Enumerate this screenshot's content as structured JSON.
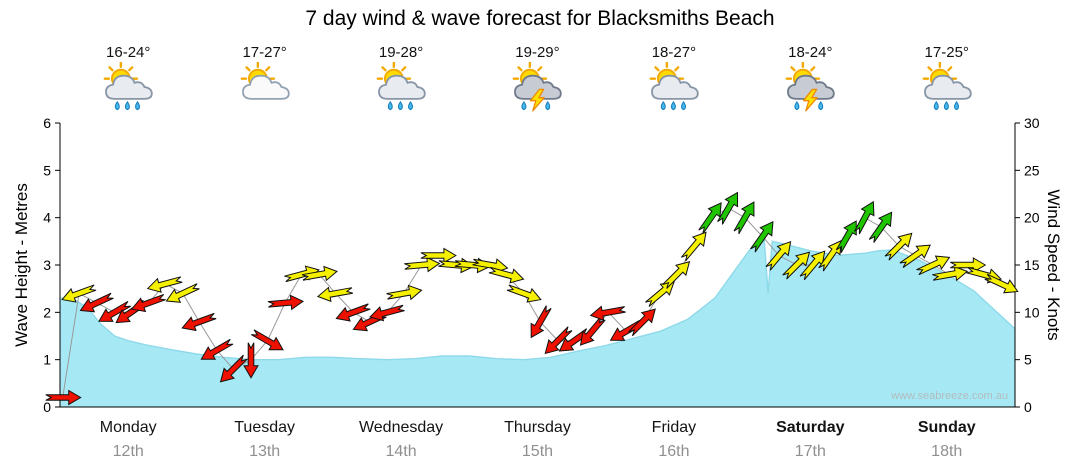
{
  "title": "7 day wind & wave forecast for Blacksmiths Beach",
  "watermark": "www.seabreeze.com.au",
  "days": [
    {
      "name": "Monday",
      "date": "12th",
      "temp": "16-24°",
      "icon": "showers"
    },
    {
      "name": "Tuesday",
      "date": "13th",
      "temp": "17-27°",
      "icon": "partly"
    },
    {
      "name": "Wednesday",
      "date": "14th",
      "temp": "19-28°",
      "icon": "showers"
    },
    {
      "name": "Thursday",
      "date": "15th",
      "temp": "19-29°",
      "icon": "storm"
    },
    {
      "name": "Friday",
      "date": "16th",
      "temp": "18-27°",
      "icon": "showers"
    },
    {
      "name": "Saturday",
      "date": "17th",
      "temp": "18-24°",
      "icon": "storm"
    },
    {
      "name": "Sunday",
      "date": "18th",
      "temp": "17-25°",
      "icon": "showers"
    }
  ],
  "chart_data": {
    "type": "area",
    "subtype": "wave-height-area with wind-speed-direction-arrows",
    "x_range_days": [
      0,
      7
    ],
    "x_tick_labels": [
      "Monday 12th",
      "Tuesday 13th",
      "Wednesday 14th",
      "Thursday 15th",
      "Friday 16th",
      "Saturday 17th",
      "Sunday 18th"
    ],
    "left_axis": {
      "label": "Wave Height - Metres",
      "min": 0,
      "max": 6,
      "ticks": [
        0,
        1,
        2,
        3,
        4,
        5,
        6
      ]
    },
    "right_axis": {
      "label": "Wind Speed - Knots",
      "min": 0,
      "max": 30,
      "ticks": [
        0,
        5,
        10,
        15,
        20,
        25,
        30
      ]
    },
    "grid": false,
    "legend": "none",
    "wave_height_m_format": [
      "time_days",
      "metres"
    ],
    "wave_height_m": [
      [
        0,
        2.3
      ],
      [
        0.1,
        2.28
      ],
      [
        0.2,
        2.1
      ],
      [
        0.3,
        1.75
      ],
      [
        0.4,
        1.5
      ],
      [
        0.5,
        1.4
      ],
      [
        0.65,
        1.3
      ],
      [
        0.8,
        1.22
      ],
      [
        1.0,
        1.12
      ],
      [
        1.2,
        1.05
      ],
      [
        1.4,
        1.0
      ],
      [
        1.6,
        1.0
      ],
      [
        1.8,
        1.05
      ],
      [
        2.0,
        1.05
      ],
      [
        2.2,
        1.02
      ],
      [
        2.4,
        1.0
      ],
      [
        2.6,
        1.02
      ],
      [
        2.8,
        1.08
      ],
      [
        3.0,
        1.08
      ],
      [
        3.2,
        1.02
      ],
      [
        3.4,
        1.0
      ],
      [
        3.6,
        1.05
      ],
      [
        3.8,
        1.18
      ],
      [
        4.0,
        1.3
      ],
      [
        4.2,
        1.45
      ],
      [
        4.4,
        1.6
      ],
      [
        4.6,
        1.85
      ],
      [
        4.8,
        2.3
      ],
      [
        4.95,
        2.9
      ],
      [
        5.05,
        3.3
      ],
      [
        5.12,
        3.55
      ],
      [
        5.16,
        3.6
      ],
      [
        5.19,
        2.4
      ],
      [
        5.22,
        3.5
      ],
      [
        5.3,
        3.45
      ],
      [
        5.5,
        3.3
      ],
      [
        5.7,
        3.2
      ],
      [
        5.9,
        3.25
      ],
      [
        6.0,
        3.3
      ],
      [
        6.1,
        3.32
      ],
      [
        6.3,
        3.1
      ],
      [
        6.5,
        2.8
      ],
      [
        6.7,
        2.45
      ],
      [
        6.85,
        2.05
      ],
      [
        7.0,
        1.65
      ]
    ],
    "wind_format": [
      "time_days",
      "knots",
      "bearing_deg_arrow_points_toward"
    ],
    "wind": [
      [
        0.02,
        1,
        90
      ],
      [
        0.14,
        12,
        250
      ],
      [
        0.27,
        11,
        245
      ],
      [
        0.4,
        10,
        240
      ],
      [
        0.52,
        10,
        235
      ],
      [
        0.65,
        11,
        250
      ],
      [
        0.77,
        13,
        255
      ],
      [
        0.9,
        12,
        245
      ],
      [
        1.02,
        9,
        250
      ],
      [
        1.15,
        6,
        240
      ],
      [
        1.27,
        4,
        225
      ],
      [
        1.4,
        5,
        180
      ],
      [
        1.52,
        7,
        120
      ],
      [
        1.65,
        11,
        85
      ],
      [
        1.77,
        14,
        75
      ],
      [
        1.9,
        14,
        80
      ],
      [
        2.02,
        12,
        260
      ],
      [
        2.15,
        10,
        250
      ],
      [
        2.27,
        9,
        245
      ],
      [
        2.4,
        10,
        255
      ],
      [
        2.52,
        12,
        80
      ],
      [
        2.65,
        15,
        85
      ],
      [
        2.77,
        16,
        90
      ],
      [
        2.9,
        15,
        95
      ],
      [
        3.02,
        15,
        95
      ],
      [
        3.15,
        15,
        100
      ],
      [
        3.27,
        14,
        105
      ],
      [
        3.4,
        12,
        110
      ],
      [
        3.52,
        9,
        210
      ],
      [
        3.65,
        7,
        225
      ],
      [
        3.77,
        7,
        235
      ],
      [
        3.9,
        8,
        220
      ],
      [
        4.02,
        10,
        260
      ],
      [
        4.15,
        8,
        240
      ],
      [
        4.27,
        9,
        45
      ],
      [
        4.4,
        12,
        50
      ],
      [
        4.52,
        14,
        45
      ],
      [
        4.65,
        17,
        40
      ],
      [
        4.77,
        20,
        35
      ],
      [
        4.9,
        21,
        30
      ],
      [
        5.02,
        20,
        30
      ],
      [
        5.15,
        18,
        35
      ],
      [
        5.27,
        16,
        40
      ],
      [
        5.4,
        15,
        45
      ],
      [
        5.52,
        15,
        40
      ],
      [
        5.65,
        16,
        35
      ],
      [
        5.77,
        18,
        30
      ],
      [
        5.9,
        20,
        28
      ],
      [
        6.02,
        19,
        35
      ],
      [
        6.15,
        17,
        45
      ],
      [
        6.27,
        16,
        55
      ],
      [
        6.4,
        15,
        65
      ],
      [
        6.52,
        14,
        80
      ],
      [
        6.65,
        15,
        90
      ],
      [
        6.77,
        14,
        105
      ],
      [
        6.9,
        13,
        115
      ]
    ],
    "wind_color_rule": {
      "red_below_knots": 12,
      "yellow_below_knots": 18,
      "green_at_or_above_knots": 18
    },
    "colors": {
      "wave_fill": "#A6E9F5",
      "wave_line": "#8ED9E9",
      "arrow_red": "#EE1100",
      "arrow_yellow": "#F5F000",
      "arrow_green": "#20C500",
      "arrow_outline": "#111111",
      "wind_line": "#999999",
      "axis": "#000000"
    }
  }
}
